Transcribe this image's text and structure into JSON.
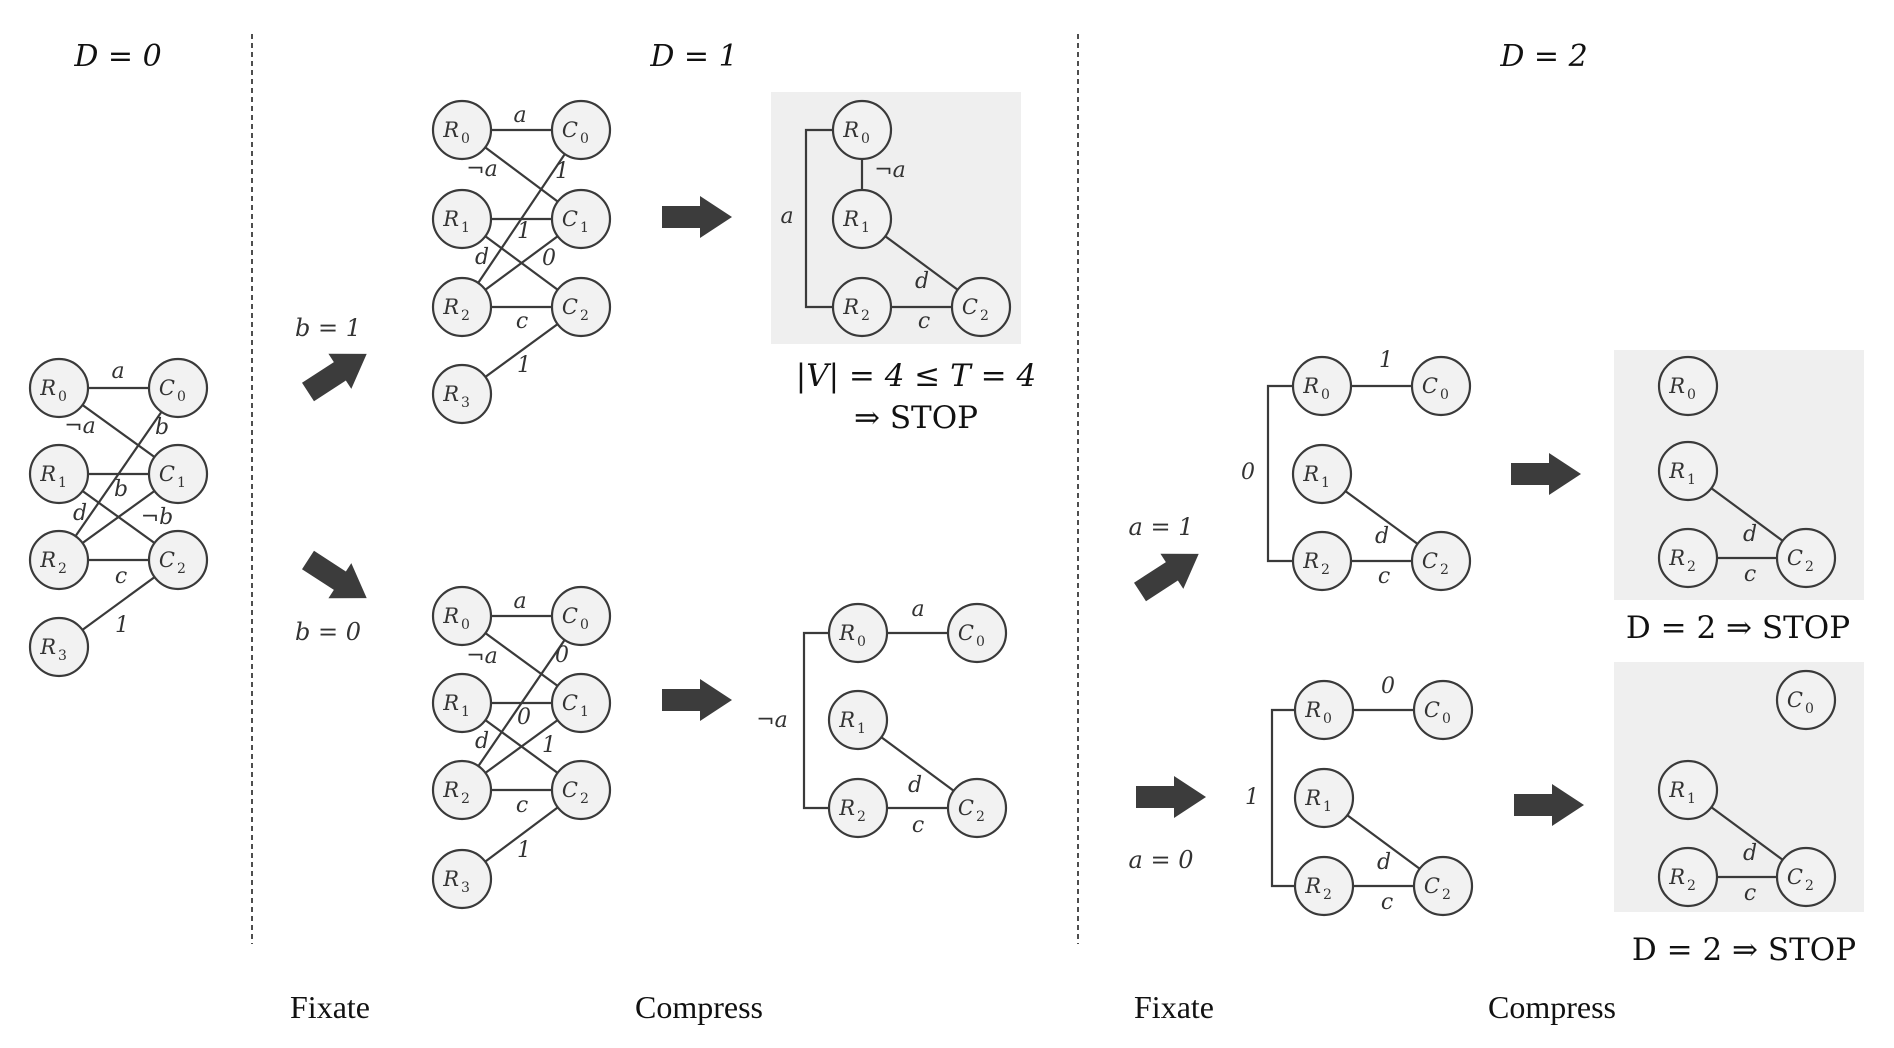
{
  "titles": {
    "d0": "D = 0",
    "d1": "D = 1",
    "d2": "D = 2"
  },
  "conditions": {
    "b1": "b = 1",
    "b0": "b = 0",
    "a1": "a = 1",
    "a0": "a = 0"
  },
  "stop_labels": {
    "top_mid": "|V| = 4 ≤ T = 4",
    "top_mid_2": "⇒ STOP",
    "right_top": "D = 2 ⇒ STOP",
    "right_bottom": "D = 2 ⇒ STOP"
  },
  "footer": {
    "fixate_1": "Fixate",
    "compress_1": "Compress",
    "fixate_2": "Fixate",
    "compress_2": "Compress"
  },
  "node_labels": {
    "R0": [
      "R",
      "0"
    ],
    "R1": [
      "R",
      "1"
    ],
    "R2": [
      "R",
      "2"
    ],
    "R3": [
      "R",
      "3"
    ],
    "C0": [
      "C",
      "0"
    ],
    "C1": [
      "C",
      "1"
    ],
    "C2": [
      "C",
      "2"
    ]
  },
  "graph_d0": {
    "edge_labels": {
      "r0c0": "a",
      "r0c1": "¬a",
      "r2c0": "b",
      "r1c1": "b",
      "r1c2": "d",
      "r2c1": "¬b",
      "r2c2": "c",
      "r3c2": "1"
    }
  },
  "graph_b1": {
    "edge_labels": {
      "r0c0": "a",
      "r0c1": "¬a",
      "r2c0": "1",
      "r1c1": "1",
      "r1c2": "0",
      "r2c1": "d",
      "r2c2": "c",
      "r3c2": "1"
    }
  },
  "graph_b0": {
    "edge_labels": {
      "r0c0": "a",
      "r0c1": "¬a",
      "r2c0": "0",
      "r1c1": "0",
      "r1c2": "1",
      "r2c1": "d",
      "r2c2": "c",
      "r3c2": "1"
    }
  },
  "compressed_b1": {
    "edge_labels": {
      "bracket": "a",
      "r0r1": "¬a",
      "r1c2": "d",
      "r2c2": "c"
    }
  },
  "compressed_b0": {
    "edge_labels": {
      "bracket": "¬a",
      "r0c0": "a",
      "r1c2": "d",
      "r2c2": "c"
    }
  },
  "graph_a1": {
    "edge_labels": {
      "r0c0": "1",
      "bracket": "0",
      "r1c2": "d",
      "r2c2": "c"
    }
  },
  "graph_a0": {
    "edge_labels": {
      "r0c0": "0",
      "bracket": "1",
      "r1c2": "d",
      "r2c2": "c"
    }
  },
  "final_a1": {
    "edge_labels": {
      "r1c2": "d",
      "r2c2": "c"
    }
  },
  "final_a0": {
    "edge_labels": {
      "r1c2": "d",
      "r2c2": "c"
    }
  },
  "colors": {
    "panel": "#efefef",
    "node_fill": "#f2f2f2",
    "stroke": "#3a3a3a",
    "arrow": "#3c3c3c"
  }
}
